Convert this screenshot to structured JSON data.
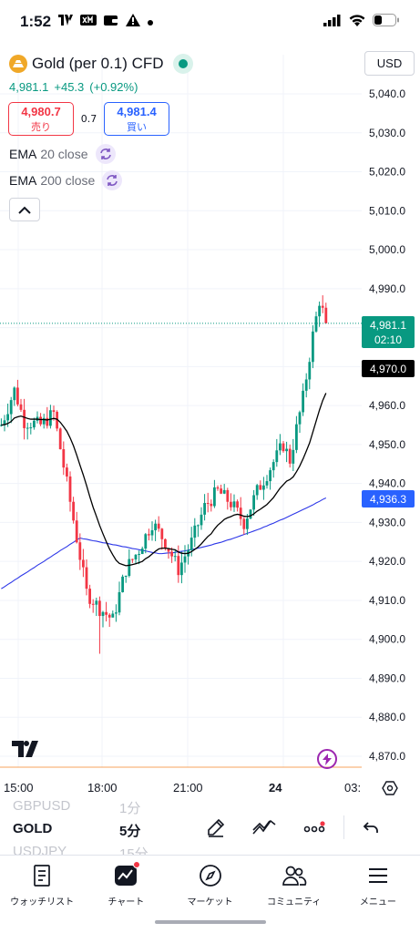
{
  "status_bar": {
    "time": "1:52"
  },
  "symbol": {
    "title": "Gold (per 0.1) CFD",
    "last": "4,981.1",
    "change": "+45.3",
    "change_pct": "(+0.92%)",
    "sell_price": "4,980.7",
    "sell_label": "売り",
    "spread": "0.7",
    "buy_price": "4,981.4",
    "buy_label": "買い"
  },
  "indicators": [
    {
      "name": "EMA",
      "param": "20 close"
    },
    {
      "name": "EMA",
      "param": "200 close"
    }
  ],
  "currency": "USD",
  "price_axis": {
    "ticks": [
      "5,040.0",
      "5,030.0",
      "5,020.0",
      "5,010.0",
      "5,000.0",
      "4,990.0",
      "4,980.0",
      "4,970.0",
      "4,960.0",
      "4,950.0",
      "4,940.0",
      "4,930.0",
      "4,920.0",
      "4,910.0",
      "4,900.0",
      "4,890.0",
      "4,880.0",
      "4,870.0"
    ],
    "last_price_label": "4,981.1",
    "countdown": "02:10",
    "ema20_label": "4,970.0",
    "ema200_label": "4,936.3"
  },
  "time_axis": {
    "ticks": [
      "15:00",
      "18:00",
      "21:00",
      "24",
      "03:"
    ]
  },
  "colors": {
    "up": "#089981",
    "down": "#f23645",
    "ema20": "#000000",
    "ema200": "#2d37e8",
    "last_price": "#089981",
    "ema200_label": "#2962ff"
  },
  "chart_data": {
    "type": "candlestick",
    "timeframe": "5分",
    "ylim": [
      4865,
      5045
    ],
    "ohlc": [],
    "ema20": [],
    "ema200": []
  },
  "symbol_list": [
    {
      "symbol": "GBPUSD",
      "timeframe": "1分"
    },
    {
      "symbol": "GOLD",
      "timeframe": "5分"
    },
    {
      "symbol": "USDJPY",
      "timeframe": "15分"
    }
  ],
  "toolbar_icons": [
    "pen-icon",
    "indicators-icon",
    "more-icon",
    "undo-icon"
  ],
  "nav": [
    {
      "label": "ウォッチリスト",
      "icon": "watchlist-icon"
    },
    {
      "label": "チャート",
      "icon": "chart-icon"
    },
    {
      "label": "マーケット",
      "icon": "compass-icon"
    },
    {
      "label": "コミュニティ",
      "icon": "community-icon"
    },
    {
      "label": "メニュー",
      "icon": "menu-icon"
    }
  ]
}
